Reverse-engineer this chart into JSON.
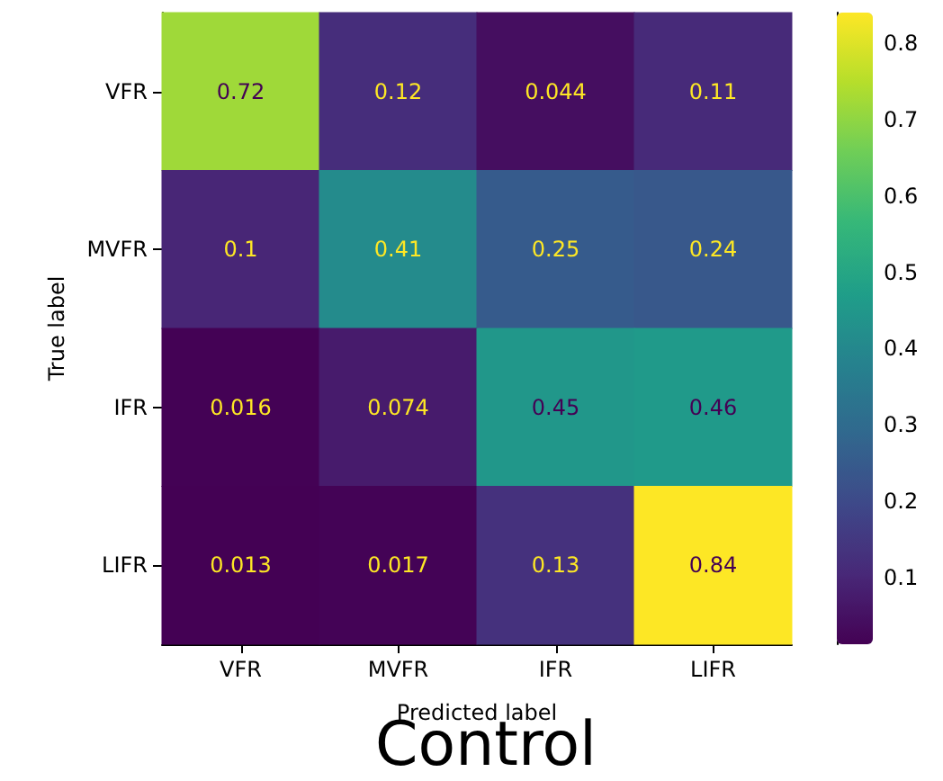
{
  "chart_data": {
    "type": "heatmap",
    "title": "Control",
    "xlabel": "Predicted label",
    "ylabel": "True label",
    "categories": [
      "VFR",
      "MVFR",
      "IFR",
      "LIFR"
    ],
    "y_categories": [
      "VFR",
      "MVFR",
      "IFR",
      "LIFR"
    ],
    "cells": [
      [
        0.72,
        0.12,
        0.044,
        0.11
      ],
      [
        0.1,
        0.41,
        0.25,
        0.24
      ],
      [
        0.016,
        0.074,
        0.45,
        0.46
      ],
      [
        0.013,
        0.017,
        0.13,
        0.84
      ]
    ],
    "data_labels": true,
    "clim": [
      0.013,
      0.84
    ],
    "cticks": [
      0.1,
      0.2,
      0.3,
      0.4,
      0.5,
      0.6,
      0.7,
      0.8
    ]
  }
}
